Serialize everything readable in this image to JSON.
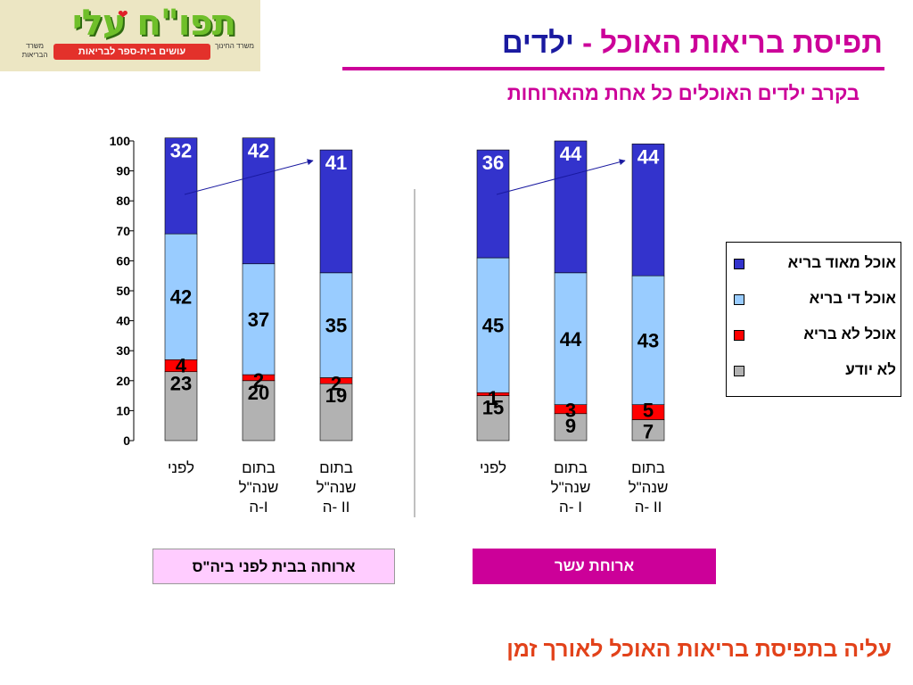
{
  "logo": {
    "main_text": "תפו\"ח עלי",
    "band_text": "עושים בית-ספר לבריאות",
    "ministry_left": "משרד הבריאות",
    "ministry_right": "משרד החינוך",
    "heart_icon": "heart-icon"
  },
  "header": {
    "title_main": "תפיסת בריאות האוכל",
    "title_dash": "-",
    "title_sub": "ילדים",
    "subtitle": "בקרב ילדים האוכלים כל אחת מהארוחות"
  },
  "footer": {
    "text": "עליה בתפיסת בריאות האוכל לאורך זמן"
  },
  "chart_data": {
    "type": "bar",
    "stacked": true,
    "ylim": [
      0,
      100
    ],
    "yticks": [
      0,
      10,
      20,
      30,
      40,
      50,
      60,
      70,
      80,
      90,
      100
    ],
    "categories": [
      [
        "לפני"
      ],
      [
        "בתום",
        "שנה\"ל",
        "ה-I"
      ],
      [
        "בתום",
        "שנה\"ל",
        "ה- II"
      ],
      [
        "לפני"
      ],
      [
        "בתום",
        "שנה\"ל",
        "ה- I"
      ],
      [
        "בתום",
        "שנה\"ל",
        "ה- II"
      ]
    ],
    "groups": [
      {
        "label": "ארוחה בבית לפני ביה\"ס",
        "columns": [
          0,
          1,
          2
        ]
      },
      {
        "label": "ארוחת עשר",
        "columns": [
          3,
          4,
          5
        ]
      }
    ],
    "series": [
      {
        "name": "לא יודע",
        "color": "#b2b2b2",
        "values": [
          23,
          20,
          19,
          15,
          9,
          7
        ]
      },
      {
        "name": "אוכל  לא בריא",
        "color": "#ff0000",
        "values": [
          4,
          2,
          2,
          1,
          3,
          5
        ]
      },
      {
        "name": "אוכל די בריא",
        "color": "#99ccff",
        "values": [
          42,
          37,
          35,
          45,
          44,
          43
        ]
      },
      {
        "name": "אוכל מאוד בריא",
        "color": "#3333cc",
        "values": [
          32,
          42,
          41,
          36,
          44,
          44
        ]
      }
    ],
    "legend_position": "right",
    "legend_order": [
      3,
      2,
      1,
      0
    ],
    "trend_arrows": [
      [
        0,
        2
      ],
      [
        3,
        5
      ]
    ],
    "grid": false
  }
}
